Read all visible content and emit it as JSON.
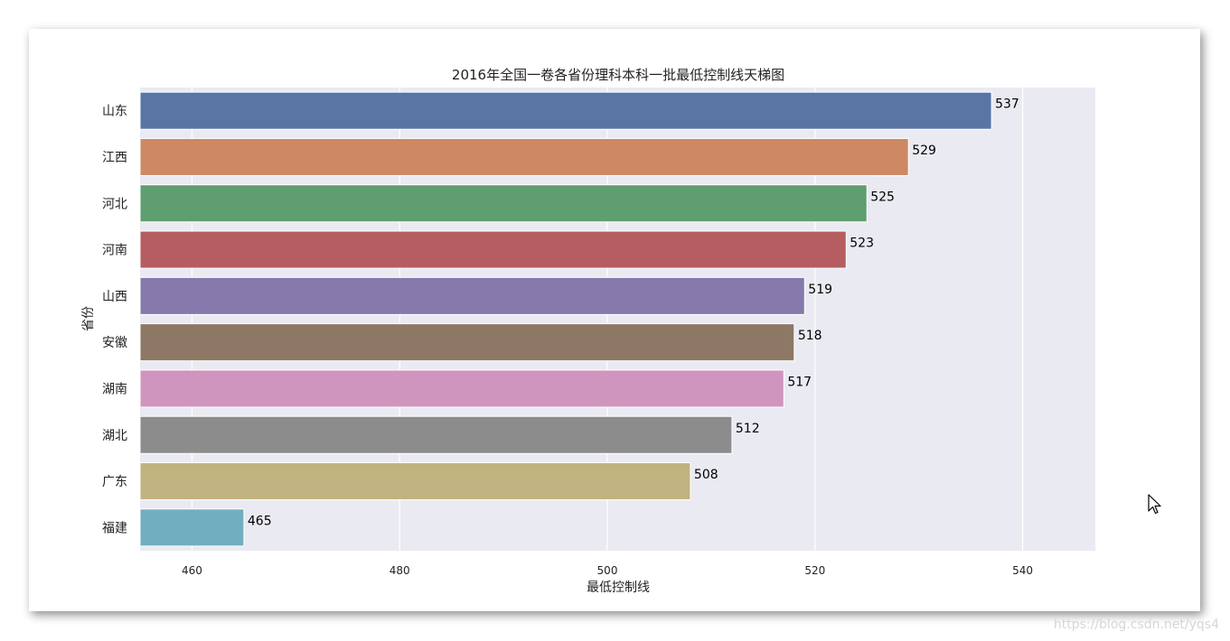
{
  "chart_data": {
    "type": "bar",
    "orientation": "horizontal",
    "title": "2016年全国一卷各省份理科本科一批最低控制线天梯图",
    "xlabel": "最低控制线",
    "ylabel": "省份",
    "categories": [
      "山东",
      "江西",
      "河北",
      "河南",
      "山西",
      "安徽",
      "湖南",
      "湖北",
      "广东",
      "福建"
    ],
    "values": [
      537,
      529,
      525,
      523,
      519,
      518,
      517,
      512,
      508,
      465
    ],
    "colors": [
      "#5875a4",
      "#cc8963",
      "#5f9e6e",
      "#b55d60",
      "#857aab",
      "#8d7866",
      "#d095bf",
      "#8c8c8c",
      "#c1b37f",
      "#71aec0"
    ],
    "xlim": [
      455,
      547
    ],
    "xticks": [
      460,
      480,
      500,
      520,
      540
    ],
    "grid": true,
    "background": "#eaeaf2"
  },
  "watermark": "https://blog.csdn.net/yqs4"
}
